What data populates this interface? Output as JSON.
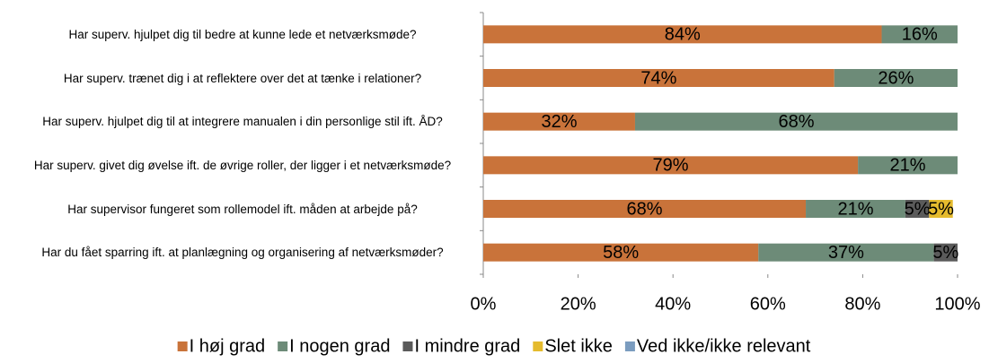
{
  "chart_data": {
    "type": "stacked-bar-horizontal",
    "categories": [
      "Har superv. hjulpet dig til bedre at kunne lede et netværksmøde?",
      "Har superv. trænet dig i at reflektere over det at tænke i relationer?",
      "Har superv. hjulpet dig til at integrere manualen i din personlige stil ift. ÅD?",
      "Har superv. givet dig øvelse ift. de øvrige roller, der ligger i et netværksmøde?",
      "Har supervisor fungeret som rollemodel ift. måden at arbejde på?",
      "Har du fået sparring ift. at planlægning og organisering af netværksmøder?"
    ],
    "series": [
      {
        "name": "I høj grad",
        "color": "#c9733a",
        "values": [
          84,
          74,
          32,
          79,
          68,
          58
        ],
        "value_labels": [
          "84%",
          "74%",
          "32%",
          "79%",
          "68%",
          "58%"
        ]
      },
      {
        "name": "I nogen grad",
        "color": "#6d8b78",
        "values": [
          16,
          26,
          68,
          21,
          21,
          37
        ],
        "value_labels": [
          "16%",
          "26%",
          "68%",
          "21%",
          "21%",
          "37%"
        ]
      },
      {
        "name": "I mindre grad",
        "color": "#5a5a5a",
        "values": [
          0,
          0,
          0,
          0,
          5,
          5
        ],
        "value_labels": [
          null,
          null,
          null,
          null,
          "5%",
          "5%"
        ]
      },
      {
        "name": "Slet ikke",
        "color": "#e5bb2e",
        "values": [
          0,
          0,
          0,
          0,
          5,
          0
        ],
        "value_labels": [
          null,
          null,
          null,
          null,
          "5%",
          null
        ]
      },
      {
        "name": "Ved ikke/ikke relevant",
        "color": "#7b9cbf",
        "values": [
          0,
          0,
          0,
          0,
          0,
          0
        ],
        "value_labels": [
          null,
          null,
          null,
          null,
          null,
          null
        ]
      }
    ],
    "xlim": [
      0,
      100
    ],
    "xticks": [
      {
        "value": 0,
        "label": "0%"
      },
      {
        "value": 20,
        "label": "20%"
      },
      {
        "value": 40,
        "label": "40%"
      },
      {
        "value": 60,
        "label": "60%"
      },
      {
        "value": 80,
        "label": "80%"
      },
      {
        "value": 100,
        "label": "100%"
      }
    ],
    "legend": "bottom"
  }
}
